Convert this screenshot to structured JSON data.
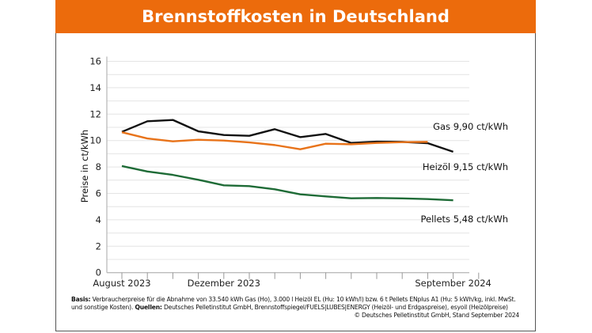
{
  "header": {
    "title": "Brennstoffkosten in Deutschland"
  },
  "chart_data": {
    "type": "line",
    "title": "Brennstoffkosten in Deutschland",
    "ylabel": "Preise in ct/kWh",
    "xlabel": "",
    "ylim": [
      0,
      16
    ],
    "yticks": [
      0,
      2,
      4,
      6,
      8,
      10,
      12,
      14,
      16
    ],
    "x_tick_labels": [
      "August 2023",
      "Dezember 2023",
      "September 2024"
    ],
    "x": [
      "2023-08",
      "2023-09",
      "2023-10",
      "2023-11",
      "2023-12",
      "2024-01",
      "2024-02",
      "2024-03",
      "2024-04",
      "2024-05",
      "2024-06",
      "2024-07",
      "2024-08",
      "2024-09"
    ],
    "grid": true,
    "series": [
      {
        "name": "Heizöl",
        "color": "#111111",
        "end_label": "Heizöl  9,15 ct/kWh",
        "values": [
          10.66,
          11.46,
          11.56,
          10.7,
          10.42,
          10.36,
          10.86,
          10.26,
          10.5,
          9.82,
          9.92,
          9.9,
          9.8,
          9.15
        ]
      },
      {
        "name": "Gas",
        "color": "#e8731a",
        "end_label": "Gas  9,90 ct/kWh",
        "values": [
          10.63,
          10.16,
          9.94,
          10.06,
          10.0,
          9.86,
          9.66,
          9.34,
          9.76,
          9.72,
          9.82,
          9.88,
          9.9,
          null
        ]
      },
      {
        "name": "Pellets",
        "color": "#1e6b36",
        "end_label": "Pellets  5,48 ct/kWh",
        "values": [
          8.07,
          7.66,
          7.4,
          7.03,
          6.61,
          6.55,
          6.31,
          5.93,
          5.77,
          5.63,
          5.65,
          5.62,
          5.57,
          5.48
        ]
      }
    ]
  },
  "footer": {
    "basis_label": "Basis:",
    "basis_text": " Verbraucherpreise für die Abnahme von 33.540 kWh Gas (Ho), 3.000 l Heizöl EL (Hu: 10 kWh/l) bzw. 6 t Pellets ENplus A1 (Hu: 5 kWh/kg, inkl. MwSt. und sonstige Kosten).",
    "sources_label": " Quellen:",
    "sources_text": " Deutsches Pelletinstitut GmbH, Brennstoffspiegel/FUELS|LUBES|ENERGY (Heizöl- und Erdgaspreise), esyoil (Heizölpreise)",
    "copyright": "© Deutsches Pelletinstitut GmbH, Stand September 2024"
  }
}
